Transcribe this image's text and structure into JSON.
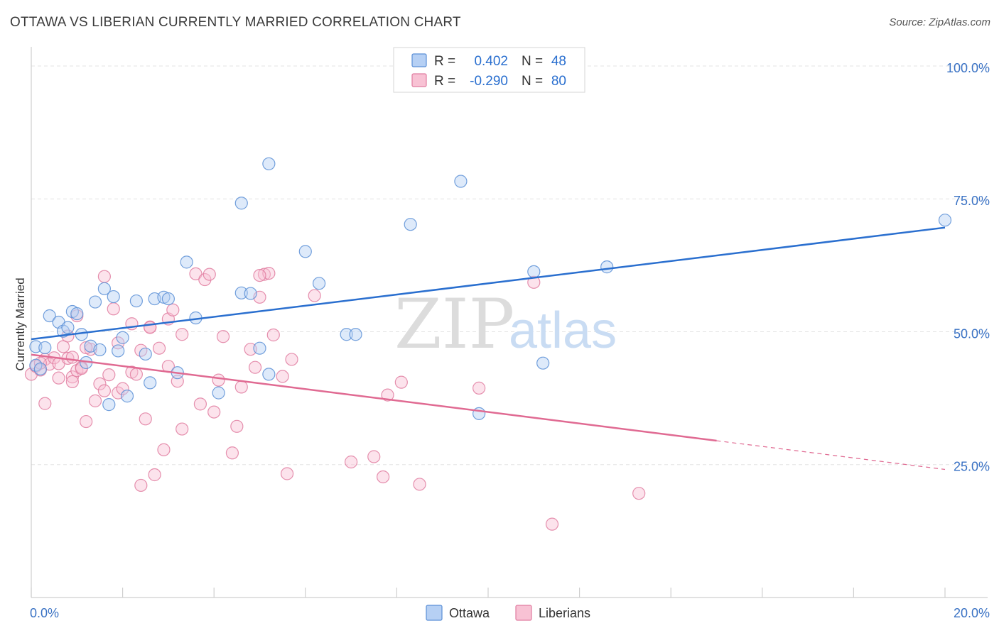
{
  "header": {
    "title": "OTTAWA VS LIBERIAN CURRENTLY MARRIED CORRELATION CHART",
    "source_prefix": "Source: ",
    "source_site": "ZipAtlas.com"
  },
  "watermark": {
    "zip": "ZIP",
    "atlas": "atlas"
  },
  "stats": [
    {
      "r_label": "R =",
      "r_value": "0.402",
      "n_label": "N =",
      "n_value": "48"
    },
    {
      "r_label": "R =",
      "r_value": "-0.290",
      "n_label": "N =",
      "n_value": "80"
    }
  ],
  "colors": {
    "ottawa_fill": "#b6d0f4",
    "ottawa_stroke": "#5b8fd6",
    "ottawa_line": "#2a6fcf",
    "liberians_fill": "#f8c2d4",
    "liberians_stroke": "#e07da0",
    "liberians_line": "#e06a92",
    "tick_label": "#3a72c4",
    "grid": "#e3e3e3"
  },
  "chart_data": {
    "type": "scatter",
    "title": "OTTAWA VS LIBERIAN CURRENTLY MARRIED CORRELATION CHART",
    "xlabel": "",
    "ylabel": "Currently Married",
    "xlim": [
      0,
      20
    ],
    "ylim": [
      0,
      102
    ],
    "x_tick_labels": [
      {
        "value": 0,
        "label": "0.0%"
      },
      {
        "value": 20,
        "label": "20.0%"
      }
    ],
    "y_tick_labels": [
      {
        "value": 25,
        "label": "25.0%"
      },
      {
        "value": 50,
        "label": "50.0%"
      },
      {
        "value": 75,
        "label": "75.0%"
      },
      {
        "value": 100,
        "label": "100.0%"
      }
    ],
    "grid": true,
    "legend_position": "bottom-center",
    "series": [
      {
        "name": "Ottawa",
        "trend": {
          "x": [
            0,
            20
          ],
          "y": [
            48.6,
            69.6
          ],
          "dashed_from": null
        },
        "points": [
          [
            0.1,
            47.2
          ],
          [
            0.1,
            43.7
          ],
          [
            0.3,
            47.0
          ],
          [
            0.4,
            53.0
          ],
          [
            0.6,
            51.8
          ],
          [
            0.7,
            50.1
          ],
          [
            0.8,
            50.8
          ],
          [
            0.9,
            53.8
          ],
          [
            1.0,
            53.4
          ],
          [
            1.1,
            49.5
          ],
          [
            1.2,
            44.2
          ],
          [
            1.3,
            47.3
          ],
          [
            1.4,
            55.6
          ],
          [
            1.5,
            46.6
          ],
          [
            1.6,
            58.1
          ],
          [
            1.7,
            36.3
          ],
          [
            1.8,
            56.6
          ],
          [
            1.9,
            46.4
          ],
          [
            2.0,
            48.9
          ],
          [
            2.1,
            37.9
          ],
          [
            2.3,
            55.8
          ],
          [
            2.5,
            45.8
          ],
          [
            2.6,
            40.4
          ],
          [
            2.7,
            56.2
          ],
          [
            2.9,
            56.5
          ],
          [
            3.0,
            56.2
          ],
          [
            3.2,
            42.3
          ],
          [
            3.4,
            63.1
          ],
          [
            3.6,
            52.6
          ],
          [
            4.1,
            38.5
          ],
          [
            4.6,
            74.2
          ],
          [
            4.6,
            57.3
          ],
          [
            4.8,
            57.2
          ],
          [
            5.0,
            46.9
          ],
          [
            5.2,
            42.0
          ],
          [
            5.2,
            81.6
          ],
          [
            6.0,
            65.1
          ],
          [
            6.3,
            59.1
          ],
          [
            6.9,
            49.5
          ],
          [
            7.1,
            49.5
          ],
          [
            8.3,
            70.2
          ],
          [
            9.4,
            78.3
          ],
          [
            9.8,
            34.6
          ],
          [
            11.0,
            61.3
          ],
          [
            11.2,
            44.1
          ],
          [
            12.6,
            62.2
          ],
          [
            20.0,
            71.0
          ],
          [
            0.2,
            43.0
          ]
        ]
      },
      {
        "name": "Liberians",
        "trend": {
          "x": [
            0,
            20
          ],
          "y": [
            45.7,
            24.1
          ],
          "dashed_from": 15.0
        },
        "points": [
          [
            0.0,
            42.0
          ],
          [
            0.1,
            43.5
          ],
          [
            0.2,
            42.8
          ],
          [
            0.3,
            44.8
          ],
          [
            0.3,
            36.5
          ],
          [
            0.4,
            43.9
          ],
          [
            0.5,
            45.1
          ],
          [
            0.6,
            44.0
          ],
          [
            0.6,
            41.3
          ],
          [
            0.7,
            47.2
          ],
          [
            0.8,
            49.2
          ],
          [
            0.8,
            45.0
          ],
          [
            0.9,
            41.5
          ],
          [
            0.9,
            40.6
          ],
          [
            1.0,
            42.7
          ],
          [
            1.0,
            53.0
          ],
          [
            1.1,
            43.3
          ],
          [
            1.1,
            43.1
          ],
          [
            1.2,
            33.1
          ],
          [
            1.3,
            46.7
          ],
          [
            1.4,
            37.0
          ],
          [
            1.5,
            40.2
          ],
          [
            1.6,
            38.9
          ],
          [
            1.6,
            60.4
          ],
          [
            1.7,
            41.9
          ],
          [
            1.8,
            54.3
          ],
          [
            1.9,
            38.5
          ],
          [
            1.9,
            47.9
          ],
          [
            2.0,
            39.3
          ],
          [
            2.2,
            51.5
          ],
          [
            2.2,
            42.4
          ],
          [
            2.3,
            42.0
          ],
          [
            2.4,
            21.1
          ],
          [
            2.4,
            46.5
          ],
          [
            2.5,
            33.6
          ],
          [
            2.6,
            50.9
          ],
          [
            2.6,
            50.8
          ],
          [
            2.7,
            23.1
          ],
          [
            2.8,
            46.9
          ],
          [
            2.9,
            27.8
          ],
          [
            3.0,
            52.4
          ],
          [
            3.0,
            43.5
          ],
          [
            3.1,
            54.1
          ],
          [
            3.2,
            40.7
          ],
          [
            3.3,
            49.5
          ],
          [
            3.3,
            31.7
          ],
          [
            3.6,
            60.9
          ],
          [
            3.7,
            36.4
          ],
          [
            3.8,
            59.8
          ],
          [
            3.9,
            60.8
          ],
          [
            4.0,
            34.9
          ],
          [
            4.1,
            40.9
          ],
          [
            4.2,
            49.1
          ],
          [
            4.4,
            27.2
          ],
          [
            4.5,
            32.2
          ],
          [
            4.6,
            39.6
          ],
          [
            4.8,
            46.7
          ],
          [
            4.9,
            43.3
          ],
          [
            5.0,
            56.5
          ],
          [
            5.1,
            60.8
          ],
          [
            5.2,
            61.0
          ],
          [
            5.3,
            49.4
          ],
          [
            5.5,
            41.6
          ],
          [
            5.6,
            23.3
          ],
          [
            5.7,
            44.8
          ],
          [
            6.2,
            56.8
          ],
          [
            7.0,
            25.5
          ],
          [
            7.5,
            26.5
          ],
          [
            7.7,
            22.7
          ],
          [
            7.8,
            38.1
          ],
          [
            8.1,
            40.5
          ],
          [
            8.5,
            21.3
          ],
          [
            9.8,
            39.4
          ],
          [
            11.0,
            59.3
          ],
          [
            11.4,
            13.8
          ],
          [
            13.3,
            19.6
          ],
          [
            0.2,
            44.1
          ],
          [
            0.9,
            45.2
          ],
          [
            1.2,
            47.0
          ],
          [
            5.0,
            60.6
          ]
        ]
      }
    ]
  }
}
